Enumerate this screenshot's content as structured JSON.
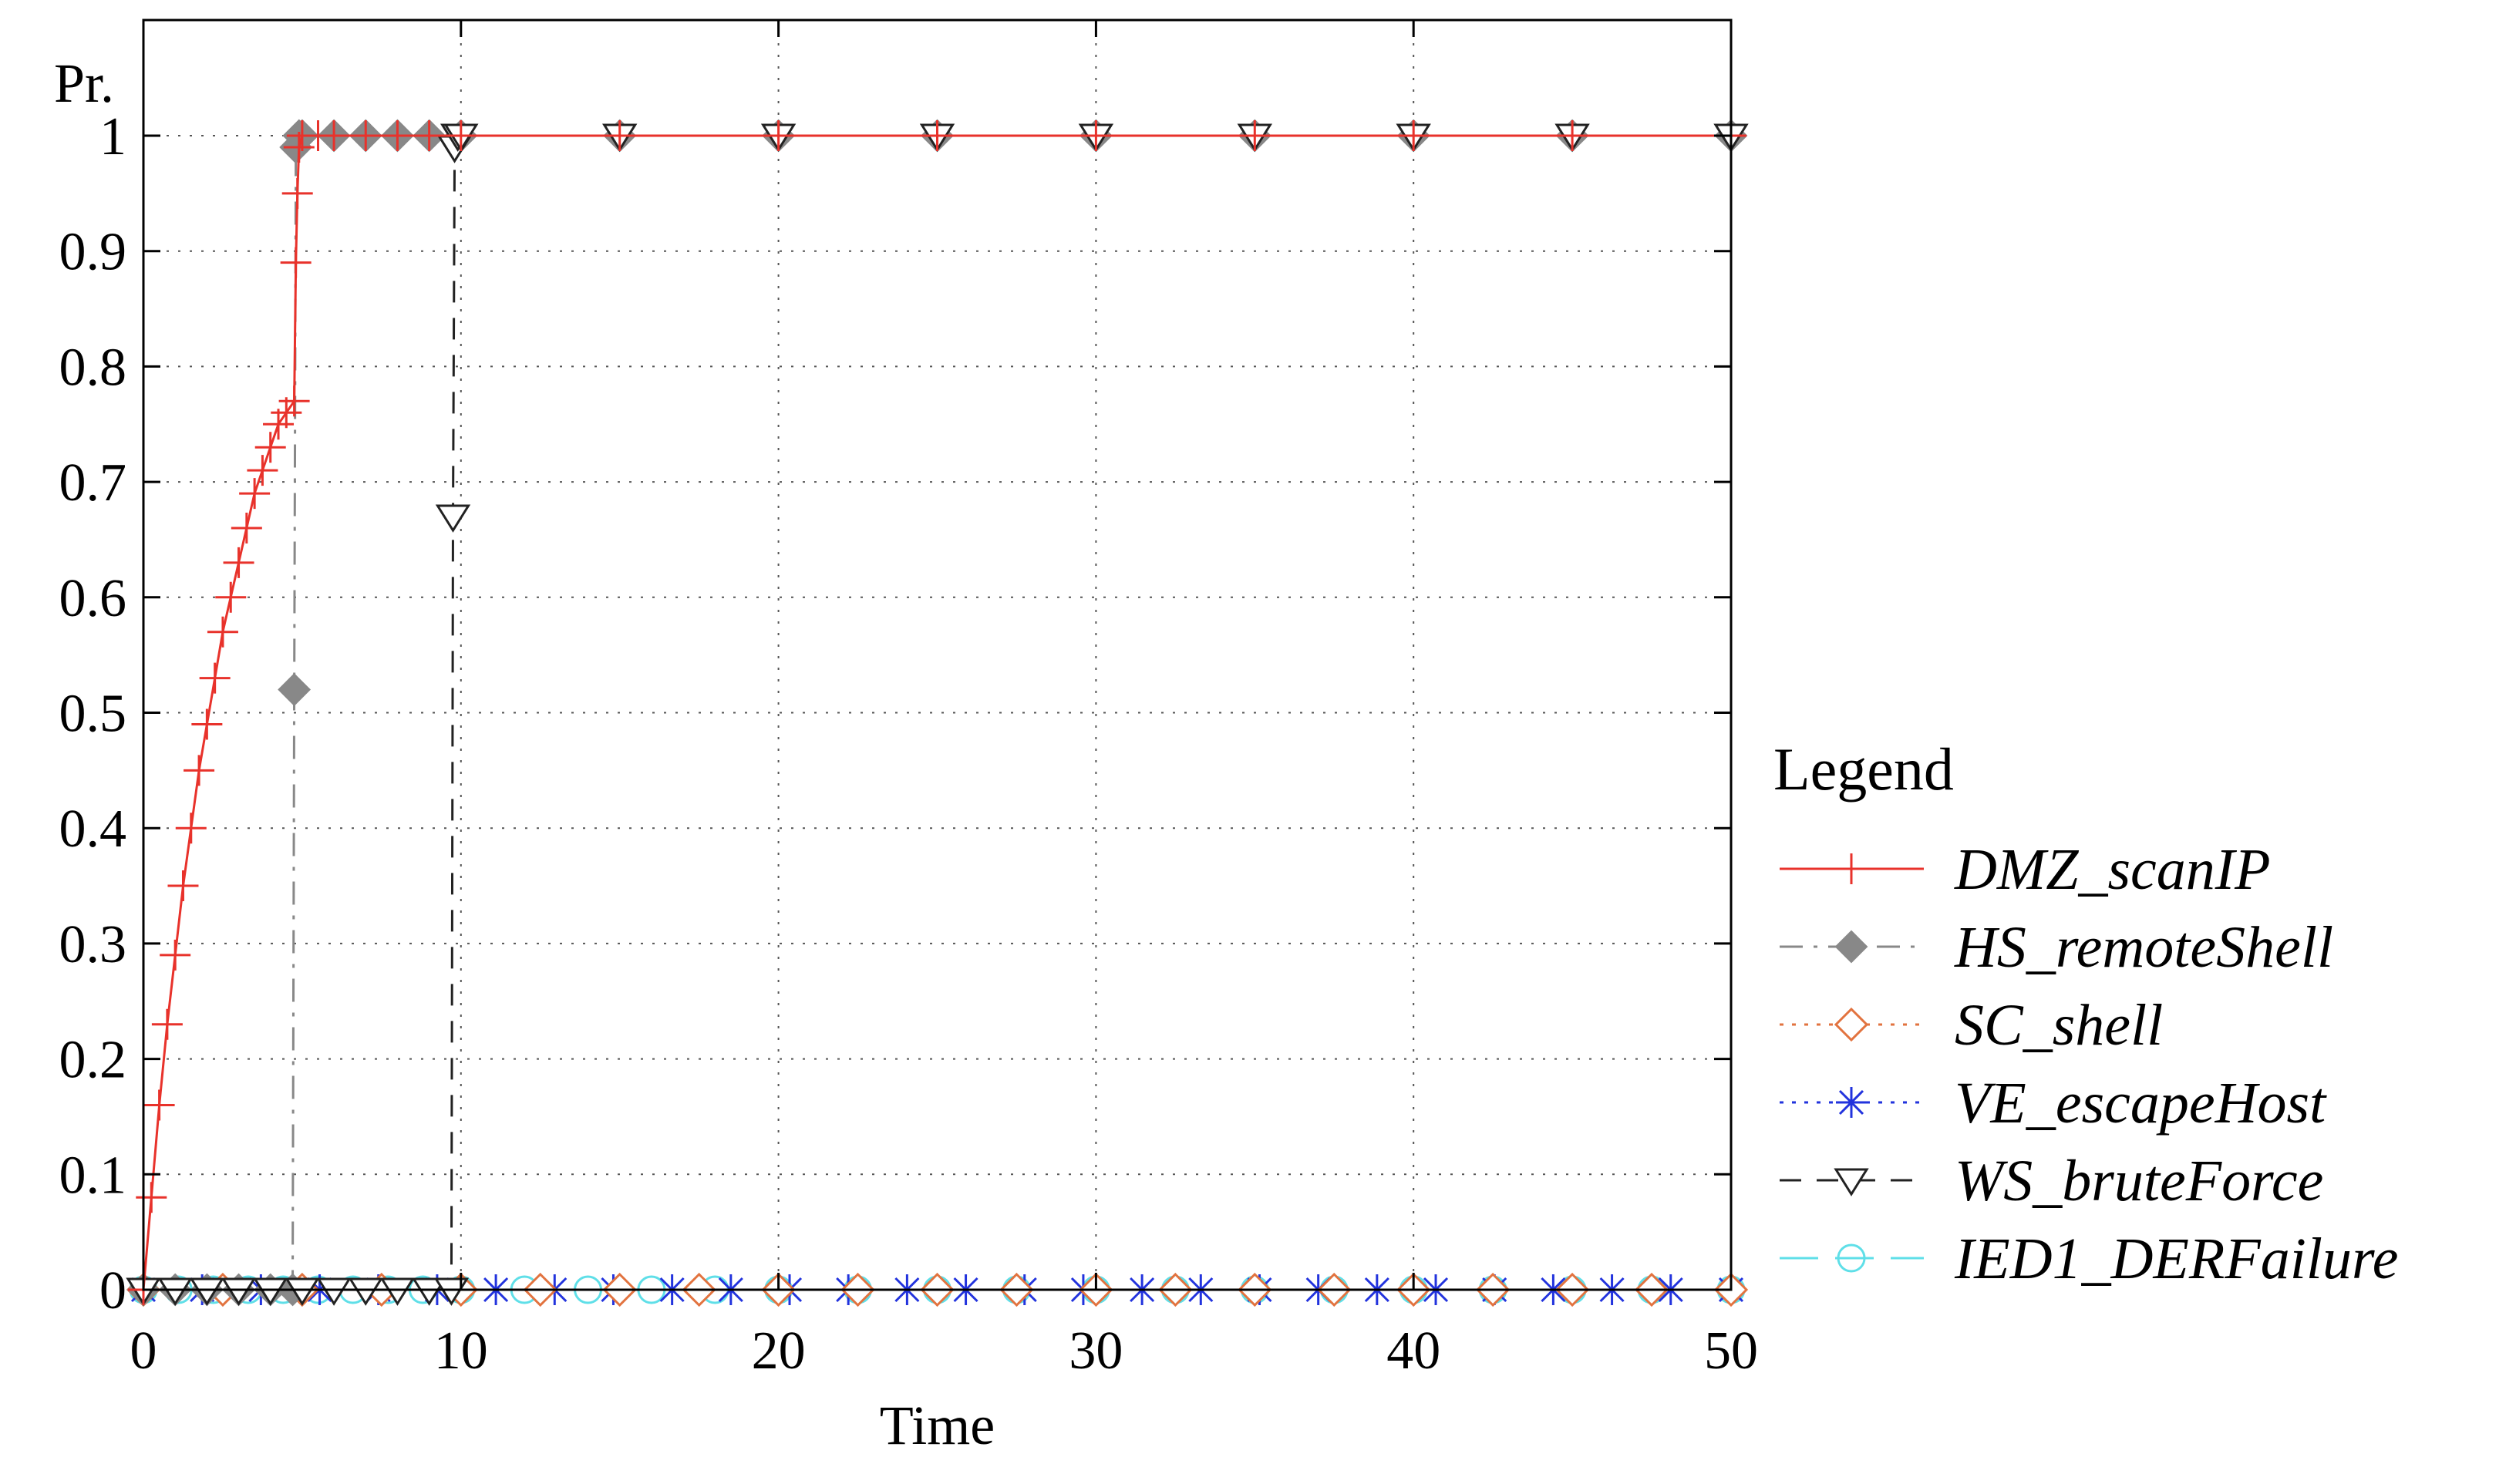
{
  "chart_data": {
    "type": "line",
    "title": "",
    "xlabel": "Time",
    "ylabel": "Pr.",
    "xlim": [
      0,
      50
    ],
    "ylim": [
      0,
      1
    ],
    "xticks": [
      0,
      10,
      20,
      30,
      40,
      50
    ],
    "yticks": [
      0,
      0.1,
      0.2,
      0.3,
      0.4,
      0.5,
      0.6,
      0.7,
      0.8,
      0.9,
      1
    ],
    "grid": true,
    "legend": {
      "title": "Legend",
      "position": "right"
    },
    "series": [
      {
        "name": "DMZ_scanIP",
        "color": "#e8322b",
        "dash": "solid",
        "marker": "plus",
        "x": [
          0,
          0.25,
          0.5,
          0.75,
          1,
          1.25,
          1.5,
          1.75,
          2,
          2.25,
          2.5,
          2.75,
          3,
          3.25,
          3.5,
          3.75,
          4,
          4.25,
          4.5,
          4.75,
          4.8,
          4.85,
          4.9,
          5,
          5.5,
          6,
          7,
          8,
          9,
          10,
          15,
          20,
          25,
          30,
          35,
          40,
          45,
          50
        ],
        "y": [
          0,
          0.08,
          0.16,
          0.23,
          0.29,
          0.35,
          0.4,
          0.45,
          0.49,
          0.53,
          0.57,
          0.6,
          0.63,
          0.66,
          0.69,
          0.71,
          0.73,
          0.75,
          0.76,
          0.77,
          0.89,
          0.95,
          0.99,
          1,
          1,
          1,
          1,
          1,
          1,
          1,
          1,
          1,
          1,
          1,
          1,
          1,
          1,
          1
        ]
      },
      {
        "name": "HS_remoteShell",
        "color": "#888888",
        "dash": "dashdot",
        "marker": "diamond-filled",
        "x": [
          0,
          1,
          2,
          3,
          4,
          4.7,
          4.75,
          4.8,
          4.9,
          5,
          6,
          7,
          8,
          9,
          10,
          15,
          20,
          25,
          30,
          35,
          40,
          45,
          50
        ],
        "y": [
          0,
          0,
          0,
          0,
          0,
          0,
          0.52,
          0.99,
          1,
          1,
          1,
          1,
          1,
          1,
          1,
          1,
          1,
          1,
          1,
          1,
          1,
          1,
          1
        ]
      },
      {
        "name": "SC_shell",
        "color": "#e2733f",
        "dash": "dotted",
        "marker": "diamond-open",
        "x": [
          0,
          2.5,
          5,
          7.5,
          10,
          12.5,
          15,
          17.5,
          20,
          22.5,
          25,
          27.5,
          30,
          32.5,
          35,
          37.5,
          40,
          42.5,
          45,
          47.5,
          50
        ],
        "y": [
          0,
          0,
          0,
          0,
          0,
          0,
          0,
          0,
          0,
          0,
          0,
          0,
          0,
          0,
          0,
          0,
          0,
          0,
          0,
          0,
          0
        ]
      },
      {
        "name": "VE_escapeHost",
        "color": "#2233dd",
        "dash": "dotted",
        "marker": "asterisk",
        "x": [
          0,
          1.85,
          3.7,
          5.55,
          7.4,
          9.25,
          11.1,
          12.95,
          14.8,
          16.65,
          18.5,
          20.35,
          22.2,
          24.05,
          25.9,
          27.75,
          29.6,
          31.45,
          33.3,
          35.15,
          37,
          38.85,
          40.7,
          42.55,
          44.4,
          46.25,
          48.1,
          50
        ],
        "y": [
          0,
          0,
          0,
          0,
          0,
          0,
          0,
          0,
          0,
          0,
          0,
          0,
          0,
          0,
          0,
          0,
          0,
          0,
          0,
          0,
          0,
          0,
          0,
          0,
          0,
          0,
          0,
          0
        ]
      },
      {
        "name": "WS_bruteForce",
        "color": "#222222",
        "dash": "dashed",
        "marker": "triangle-down-open",
        "x": [
          0,
          1,
          2,
          3,
          4,
          5,
          6,
          7,
          8,
          9,
          9.7,
          9.75,
          9.8,
          9.9,
          10,
          15,
          20,
          25,
          30,
          35,
          40,
          45,
          50
        ],
        "y": [
          0,
          0,
          0,
          0,
          0,
          0,
          0,
          0,
          0,
          0,
          0,
          0.67,
          0.99,
          1,
          1,
          1,
          1,
          1,
          1,
          1,
          1,
          1,
          1
        ]
      },
      {
        "name": "IED1_DERFailure",
        "color": "#5fdfe8",
        "dash": "longdash",
        "marker": "circle-open",
        "x": [
          0,
          1.1,
          2.2,
          3.3,
          4.4,
          5.5,
          6.6,
          7.7,
          8.8,
          10,
          12,
          14,
          16,
          18,
          20,
          22.5,
          25,
          27.5,
          30,
          32.5,
          35,
          37.5,
          40,
          42.5,
          45,
          47.5,
          50
        ],
        "y": [
          0,
          0,
          0,
          0,
          0,
          0,
          0,
          0,
          0,
          0,
          0,
          0,
          0,
          0,
          0,
          0,
          0,
          0,
          0,
          0,
          0,
          0,
          0,
          0,
          0,
          0,
          0
        ]
      }
    ]
  }
}
